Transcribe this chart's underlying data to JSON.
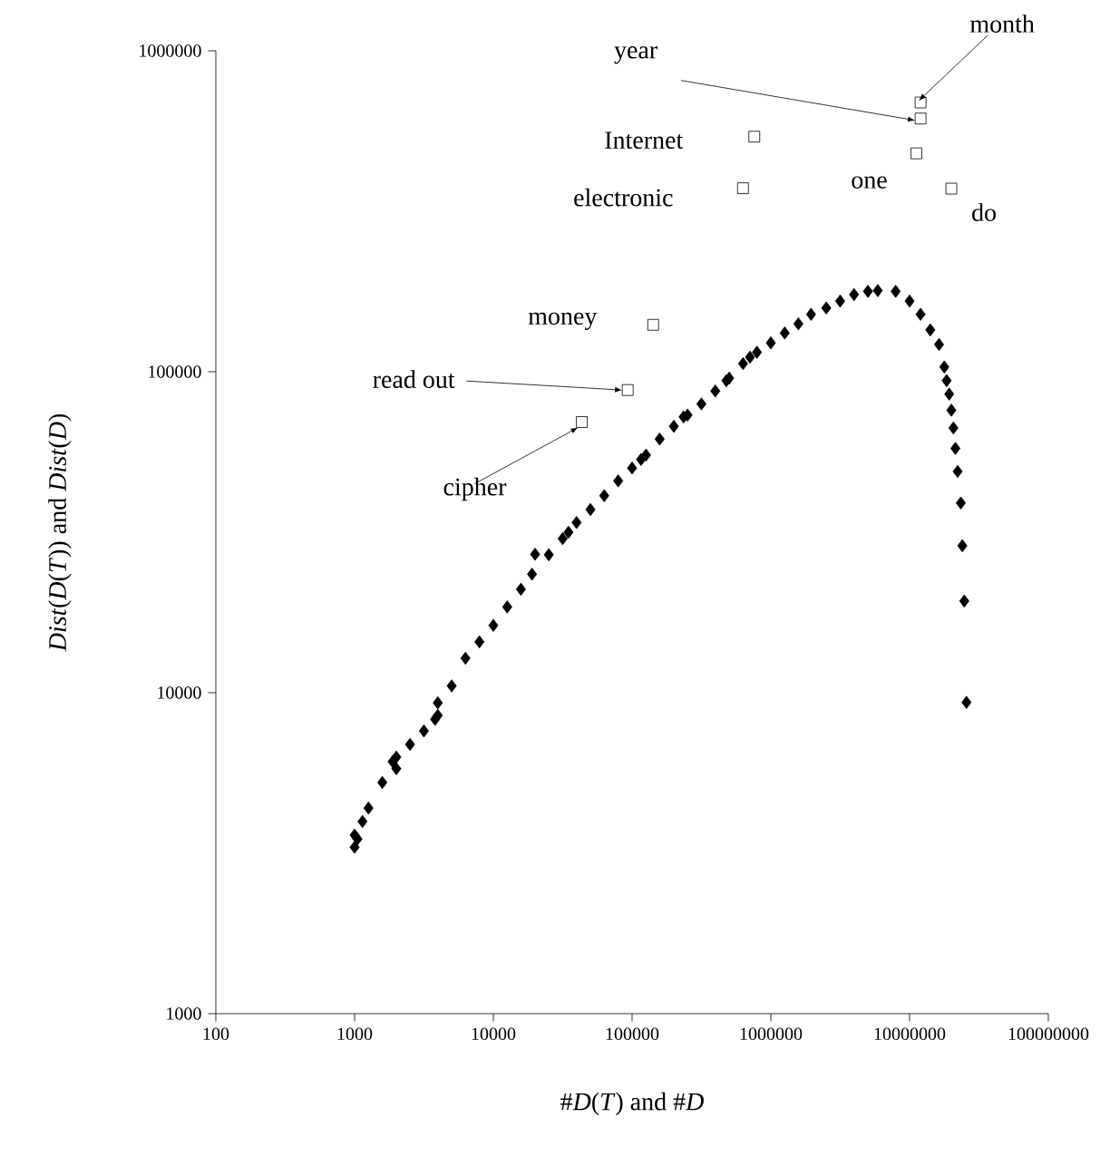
{
  "chart_data": {
    "type": "scatter",
    "xlabel": "#*D*(*T*) and #*D*",
    "ylabel": "*Dist*(*D*(*T*)) and *Dist*(*D*)",
    "log": "xy",
    "xlim": [
      100,
      100000000
    ],
    "ylim": [
      1000,
      1000000
    ],
    "xticks": [
      100,
      1000,
      10000,
      100000,
      1000000,
      10000000,
      100000000
    ],
    "yticks": [
      1000,
      10000,
      100000,
      1000000
    ],
    "series": [
      {
        "color": "#000000",
        "marker": "diamond",
        "x": [
          1000,
          1000,
          1050,
          1140,
          1260,
          1585,
          1880,
          2000,
          2000,
          2510,
          3160,
          3800,
          3980,
          3980,
          5010,
          6300,
          7940,
          10000,
          12600,
          15800,
          19000,
          20000,
          25100,
          31600,
          34800,
          39800,
          50100,
          63000,
          79400,
          100000,
          116000,
          126000,
          158000,
          200000,
          235000,
          251000,
          316000,
          398000,
          478000,
          501000,
          631000,
          708000,
          794000,
          1000000,
          1260000,
          1580000,
          1950000,
          2510000,
          3160000,
          3980000,
          5010000,
          5900000,
          7940000,
          10000000,
          12000000,
          14100000,
          16300000,
          17800000,
          18500000,
          19300000,
          20000000,
          20700000,
          21400000,
          22200000,
          23400000,
          24000000,
          24800000,
          25700000
        ],
        "values": [
          3300,
          3600,
          3500,
          3970,
          4370,
          5250,
          6100,
          6300,
          5800,
          6900,
          7600,
          8260,
          8500,
          9300,
          10500,
          12800,
          14400,
          16200,
          18500,
          21000,
          23400,
          27000,
          26900,
          30200,
          31600,
          33900,
          37200,
          41100,
          45700,
          50100,
          53300,
          55000,
          61700,
          67600,
          72300,
          73300,
          79400,
          87100,
          93800,
          95500,
          106000,
          111000,
          115000,
          123000,
          132000,
          141000,
          151000,
          158000,
          166000,
          174000,
          178000,
          179000,
          178000,
          166000,
          151000,
          135000,
          121600,
          103500,
          93800,
          85200,
          75900,
          66800,
          57700,
          48900,
          39000,
          28700,
          19300,
          9330
        ]
      },
      {
        "color": "#000000",
        "marker": "square",
        "x": [
          12000000,
          12000000,
          760000,
          630000,
          11200000,
          20000000,
          142000,
          93000,
          43400
        ],
        "values": [
          690000,
          615000,
          540000,
          373000,
          479000,
          372000,
          140000,
          87700,
          69700
        ]
      }
    ],
    "annotations": [
      {
        "text": "month",
        "x": 12000000,
        "y": 690000
      },
      {
        "text": "year",
        "x": 12000000,
        "y": 615000
      },
      {
        "text": "Internet",
        "x": 760000,
        "y": 540000
      },
      {
        "text": "electronic",
        "x": 630000,
        "y": 373000
      },
      {
        "text": "one",
        "x": 11200000,
        "y": 479000
      },
      {
        "text": "do",
        "x": 20000000,
        "y": 372000
      },
      {
        "text": "money",
        "x": 142000,
        "y": 140000
      },
      {
        "text": "read out",
        "x": 93000,
        "y": 87700
      },
      {
        "text": "cipher",
        "x": 43400,
        "y": 69700
      }
    ]
  }
}
